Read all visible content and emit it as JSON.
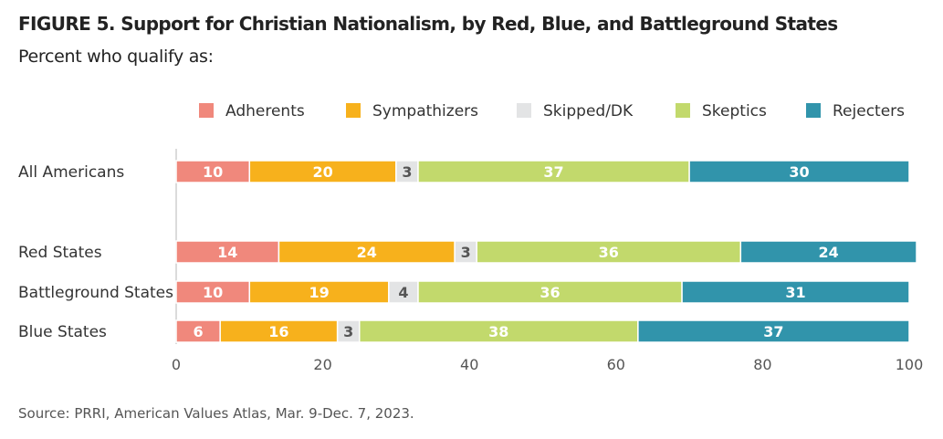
{
  "figure": {
    "title": "FIGURE 5.  Support for Christian Nationalism, by Red, Blue, and Battleground States",
    "subtitle": "Percent who qualify as:",
    "source": "Source: PRRI, American Values Atlas, Mar. 9-Dec. 7, 2023."
  },
  "chart_data": {
    "type": "bar",
    "orientation": "horizontal",
    "stacked": true,
    "categories": [
      "All Americans",
      "Red States",
      "Battleground States",
      "Blue States"
    ],
    "series": [
      {
        "name": "Adherents",
        "color": "#f0887c",
        "label_color": "#ffffff",
        "values": [
          10,
          14,
          10,
          6
        ]
      },
      {
        "name": "Sympathizers",
        "color": "#f7b11c",
        "label_color": "#ffffff",
        "values": [
          20,
          24,
          19,
          16
        ]
      },
      {
        "name": "Skipped/DK",
        "color": "#e3e4e5",
        "label_color": "#555555",
        "values": [
          3,
          3,
          4,
          3
        ]
      },
      {
        "name": "Skeptics",
        "color": "#c2d96c",
        "label_color": "#ffffff",
        "values": [
          37,
          36,
          36,
          38
        ]
      },
      {
        "name": "Rejecters",
        "color": "#3194ab",
        "label_color": "#ffffff",
        "values": [
          30,
          24,
          31,
          37
        ]
      }
    ],
    "xlim": [
      0,
      100
    ],
    "xticks": [
      "0",
      "20",
      "40",
      "60",
      "80",
      "100"
    ],
    "xlabel": "",
    "ylabel": "",
    "legend_position": "top",
    "grid": false
  }
}
